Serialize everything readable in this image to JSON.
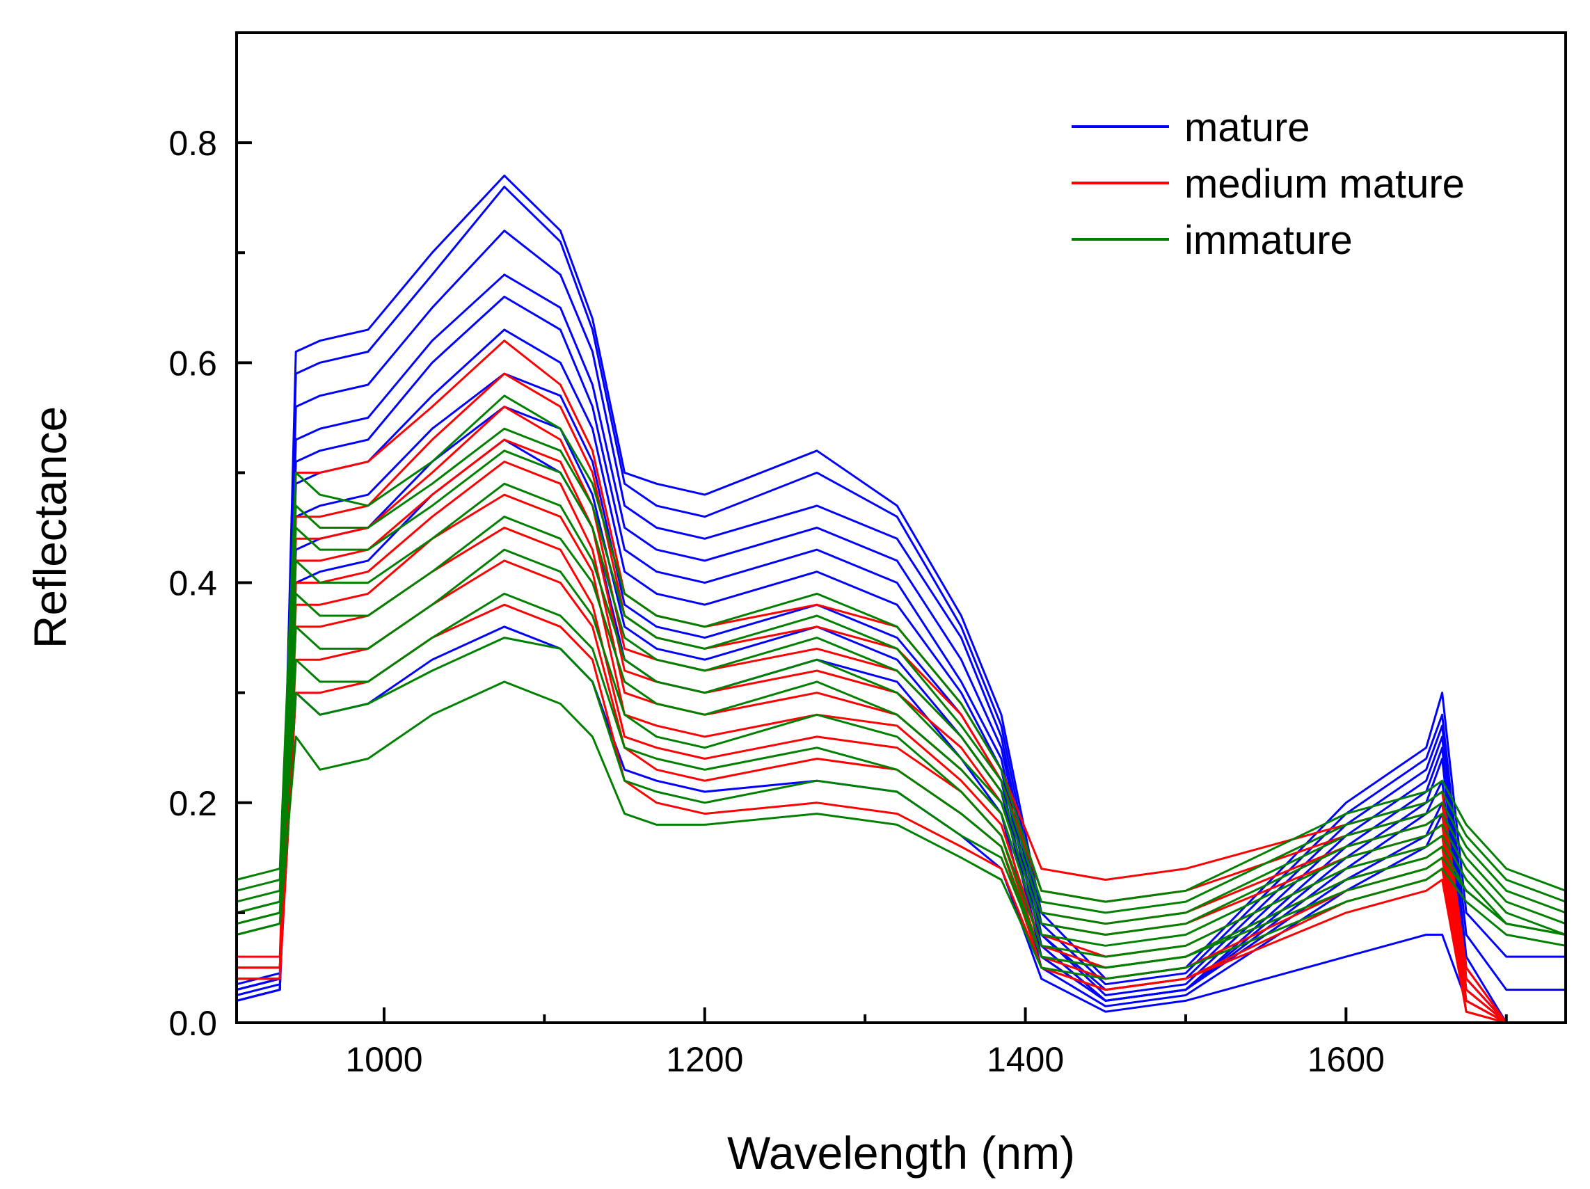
{
  "chart_data": {
    "type": "line",
    "title": "",
    "xlabel": "Wavelength (nm)",
    "ylabel": "Reflectance",
    "xlim": [
      908,
      1737
    ],
    "ylim": [
      0.0,
      0.9
    ],
    "xticks": [
      1000,
      1200,
      1400,
      1600
    ],
    "xtick_labels": [
      "1000",
      "1200",
      "1400",
      "1600"
    ],
    "yticks": [
      0.0,
      0.2,
      0.4,
      0.6,
      0.8
    ],
    "ytick_labels": [
      "0.0",
      "0.2",
      "0.4",
      "0.6",
      "0.8"
    ],
    "grid": false,
    "legend_position": "top-right",
    "legend": [
      {
        "label": "mature",
        "color": "#0000ff"
      },
      {
        "label": "medium mature",
        "color": "#ff0000"
      },
      {
        "label": "immature",
        "color": "#008000"
      }
    ],
    "x": [
      908,
      935,
      945,
      960,
      990,
      1030,
      1075,
      1110,
      1130,
      1150,
      1170,
      1200,
      1270,
      1320,
      1360,
      1385,
      1410,
      1450,
      1500,
      1600,
      1650,
      1660,
      1675,
      1700,
      1737
    ],
    "series_groups": [
      {
        "class": "mature",
        "color": "#0000ff",
        "series": [
          {
            "name": "mature-1",
            "values": [
              0.035,
              0.045,
              0.61,
              0.62,
              0.63,
              0.7,
              0.77,
              0.72,
              0.64,
              0.5,
              0.49,
              0.48,
              0.52,
              0.47,
              0.37,
              0.28,
              0.1,
              0.04,
              0.05,
              0.2,
              0.25,
              0.3,
              0.1,
              0.06,
              0.06
            ]
          },
          {
            "name": "mature-2",
            "values": [
              0.025,
              0.035,
              0.59,
              0.6,
              0.61,
              0.68,
              0.76,
              0.71,
              0.63,
              0.49,
              0.47,
              0.46,
              0.5,
              0.46,
              0.36,
              0.27,
              0.09,
              0.035,
              0.045,
              0.19,
              0.24,
              0.28,
              0.08,
              0.03,
              0.03
            ]
          },
          {
            "name": "mature-3",
            "values": [
              0.02,
              0.03,
              0.56,
              0.57,
              0.58,
              0.65,
              0.72,
              0.68,
              0.61,
              0.47,
              0.45,
              0.44,
              0.47,
              0.44,
              0.35,
              0.26,
              0.08,
              0.03,
              0.04,
              0.18,
              0.23,
              0.27,
              0.06,
              0.0,
              0.0
            ]
          },
          {
            "name": "mature-4",
            "values": [
              0.03,
              0.04,
              0.53,
              0.54,
              0.55,
              0.62,
              0.68,
              0.65,
              0.58,
              0.45,
              0.43,
              0.42,
              0.45,
              0.42,
              0.33,
              0.25,
              0.08,
              0.025,
              0.035,
              0.17,
              0.22,
              0.26,
              0.05,
              0.0,
              0.0
            ]
          },
          {
            "name": "mature-5",
            "values": [
              0.02,
              0.03,
              0.51,
              0.52,
              0.53,
              0.6,
              0.66,
              0.63,
              0.56,
              0.43,
              0.41,
              0.4,
              0.43,
              0.4,
              0.31,
              0.24,
              0.07,
              0.02,
              0.03,
              0.16,
              0.21,
              0.25,
              0.04,
              0.0,
              0.0
            ]
          },
          {
            "name": "mature-6",
            "values": [
              0.03,
              0.04,
              0.49,
              0.5,
              0.51,
              0.57,
              0.63,
              0.6,
              0.54,
              0.41,
              0.39,
              0.38,
              0.41,
              0.38,
              0.3,
              0.23,
              0.07,
              0.02,
              0.03,
              0.15,
              0.2,
              0.24,
              0.04,
              0.0,
              0.0
            ]
          },
          {
            "name": "mature-7",
            "values": [
              0.02,
              0.03,
              0.46,
              0.47,
              0.48,
              0.54,
              0.59,
              0.57,
              0.51,
              0.38,
              0.36,
              0.35,
              0.38,
              0.35,
              0.28,
              0.22,
              0.06,
              0.02,
              0.03,
              0.14,
              0.19,
              0.22,
              0.03,
              0.0,
              0.0
            ]
          },
          {
            "name": "mature-8",
            "values": [
              0.03,
              0.04,
              0.43,
              0.44,
              0.45,
              0.51,
              0.56,
              0.54,
              0.48,
              0.36,
              0.34,
              0.33,
              0.36,
              0.33,
              0.26,
              0.21,
              0.06,
              0.02,
              0.03,
              0.13,
              0.17,
              0.2,
              0.03,
              0.0,
              0.0
            ]
          },
          {
            "name": "mature-9",
            "values": [
              0.02,
              0.03,
              0.4,
              0.41,
              0.42,
              0.48,
              0.53,
              0.5,
              0.45,
              0.33,
              0.31,
              0.3,
              0.33,
              0.31,
              0.24,
              0.19,
              0.05,
              0.015,
              0.025,
              0.12,
              0.16,
              0.19,
              0.02,
              0.0,
              0.0
            ]
          },
          {
            "name": "mature-10",
            "values": [
              0.03,
              0.04,
              0.3,
              0.28,
              0.29,
              0.33,
              0.36,
              0.34,
              0.31,
              0.23,
              0.22,
              0.21,
              0.22,
              0.21,
              0.17,
              0.14,
              0.04,
              0.01,
              0.02,
              0.06,
              0.08,
              0.08,
              0.02,
              0.0,
              0.0
            ]
          }
        ]
      },
      {
        "class": "medium mature",
        "color": "#ff0000",
        "series": [
          {
            "name": "medium-1",
            "values": [
              0.06,
              0.06,
              0.5,
              0.5,
              0.51,
              0.56,
              0.62,
              0.58,
              0.52,
              0.39,
              0.37,
              0.36,
              0.38,
              0.36,
              0.29,
              0.23,
              0.14,
              0.13,
              0.14,
              0.18,
              0.2,
              0.21,
              0.05,
              0.0,
              0.0
            ]
          },
          {
            "name": "medium-2",
            "values": [
              0.05,
              0.05,
              0.46,
              0.46,
              0.47,
              0.53,
              0.59,
              0.56,
              0.5,
              0.37,
              0.35,
              0.34,
              0.36,
              0.34,
              0.28,
              0.22,
              0.12,
              0.11,
              0.12,
              0.17,
              0.19,
              0.2,
              0.04,
              0.0,
              0.0
            ]
          },
          {
            "name": "medium-3",
            "values": [
              0.05,
              0.05,
              0.44,
              0.44,
              0.45,
              0.5,
              0.56,
              0.53,
              0.47,
              0.34,
              0.33,
              0.32,
              0.34,
              0.32,
              0.26,
              0.21,
              0.1,
              0.09,
              0.1,
              0.16,
              0.18,
              0.19,
              0.03,
              0.0,
              0.0
            ]
          },
          {
            "name": "medium-4",
            "values": [
              0.04,
              0.04,
              0.42,
              0.42,
              0.43,
              0.48,
              0.53,
              0.51,
              0.45,
              0.32,
              0.31,
              0.3,
              0.32,
              0.3,
              0.25,
              0.2,
              0.09,
              0.08,
              0.09,
              0.15,
              0.17,
              0.18,
              0.03,
              0.0,
              0.0
            ]
          },
          {
            "name": "medium-5",
            "values": [
              0.05,
              0.05,
              0.4,
              0.4,
              0.41,
              0.46,
              0.51,
              0.49,
              0.43,
              0.3,
              0.29,
              0.28,
              0.3,
              0.28,
              0.23,
              0.19,
              0.08,
              0.06,
              0.07,
              0.14,
              0.16,
              0.17,
              0.02,
              0.0,
              0.0
            ]
          },
          {
            "name": "medium-6",
            "values": [
              0.04,
              0.04,
              0.38,
              0.38,
              0.39,
              0.44,
              0.48,
              0.46,
              0.41,
              0.28,
              0.27,
              0.26,
              0.28,
              0.27,
              0.22,
              0.18,
              0.07,
              0.05,
              0.06,
              0.13,
              0.15,
              0.16,
              0.02,
              0.0,
              0.0
            ]
          },
          {
            "name": "medium-7",
            "values": [
              0.05,
              0.05,
              0.36,
              0.36,
              0.37,
              0.41,
              0.45,
              0.43,
              0.38,
              0.26,
              0.25,
              0.24,
              0.26,
              0.25,
              0.21,
              0.17,
              0.06,
              0.04,
              0.05,
              0.12,
              0.14,
              0.15,
              0.01,
              0.0,
              0.0
            ]
          },
          {
            "name": "medium-8",
            "values": [
              0.05,
              0.05,
              0.33,
              0.33,
              0.34,
              0.38,
              0.42,
              0.4,
              0.36,
              0.25,
              0.23,
              0.22,
              0.24,
              0.23,
              0.19,
              0.16,
              0.05,
              0.03,
              0.04,
              0.11,
              0.13,
              0.14,
              0.01,
              0.0,
              0.0
            ]
          },
          {
            "name": "medium-9",
            "values": [
              0.04,
              0.04,
              0.3,
              0.3,
              0.31,
              0.35,
              0.38,
              0.36,
              0.33,
              0.22,
              0.2,
              0.19,
              0.2,
              0.19,
              0.16,
              0.14,
              0.05,
              0.03,
              0.04,
              0.1,
              0.12,
              0.13,
              0.01,
              0.0,
              0.0
            ]
          }
        ]
      },
      {
        "class": "immature",
        "color": "#008000",
        "series": [
          {
            "name": "immature-1",
            "values": [
              0.13,
              0.14,
              0.5,
              0.48,
              0.47,
              0.51,
              0.57,
              0.54,
              0.49,
              0.39,
              0.37,
              0.36,
              0.39,
              0.36,
              0.29,
              0.23,
              0.12,
              0.11,
              0.12,
              0.19,
              0.21,
              0.22,
              0.18,
              0.14,
              0.12
            ]
          },
          {
            "name": "immature-2",
            "values": [
              0.12,
              0.13,
              0.47,
              0.45,
              0.45,
              0.49,
              0.54,
              0.52,
              0.47,
              0.37,
              0.35,
              0.34,
              0.37,
              0.34,
              0.27,
              0.22,
              0.11,
              0.1,
              0.11,
              0.18,
              0.2,
              0.21,
              0.17,
              0.13,
              0.11
            ]
          },
          {
            "name": "immature-3",
            "values": [
              0.11,
              0.12,
              0.45,
              0.43,
              0.43,
              0.47,
              0.52,
              0.5,
              0.45,
              0.35,
              0.33,
              0.32,
              0.35,
              0.32,
              0.26,
              0.21,
              0.1,
              0.09,
              0.1,
              0.17,
              0.19,
              0.2,
              0.16,
              0.12,
              0.1
            ]
          },
          {
            "name": "immature-4",
            "values": [
              0.1,
              0.11,
              0.42,
              0.4,
              0.4,
              0.44,
              0.49,
              0.47,
              0.42,
              0.33,
              0.31,
              0.3,
              0.33,
              0.3,
              0.24,
              0.2,
              0.09,
              0.08,
              0.09,
              0.16,
              0.18,
              0.19,
              0.15,
              0.11,
              0.09
            ]
          },
          {
            "name": "immature-5",
            "values": [
              0.09,
              0.1,
              0.39,
              0.37,
              0.37,
              0.41,
              0.46,
              0.44,
              0.4,
              0.31,
              0.29,
              0.28,
              0.31,
              0.28,
              0.23,
              0.19,
              0.08,
              0.07,
              0.08,
              0.15,
              0.17,
              0.18,
              0.14,
              0.1,
              0.08
            ]
          },
          {
            "name": "immature-6",
            "values": [
              0.08,
              0.09,
              0.36,
              0.34,
              0.34,
              0.38,
              0.43,
              0.41,
              0.37,
              0.28,
              0.26,
              0.25,
              0.28,
              0.26,
              0.21,
              0.17,
              0.07,
              0.06,
              0.07,
              0.14,
              0.16,
              0.17,
              0.13,
              0.09,
              0.08
            ]
          },
          {
            "name": "immature-7",
            "values": [
              0.09,
              0.1,
              0.33,
              0.31,
              0.31,
              0.35,
              0.39,
              0.37,
              0.34,
              0.25,
              0.24,
              0.23,
              0.25,
              0.23,
              0.19,
              0.16,
              0.06,
              0.05,
              0.06,
              0.13,
              0.15,
              0.16,
              0.12,
              0.09,
              0.08
            ]
          },
          {
            "name": "immature-8",
            "values": [
              0.1,
              0.11,
              0.3,
              0.28,
              0.29,
              0.32,
              0.35,
              0.34,
              0.31,
              0.22,
              0.21,
              0.2,
              0.22,
              0.21,
              0.17,
              0.15,
              0.06,
              0.05,
              0.06,
              0.12,
              0.14,
              0.15,
              0.12,
              0.09,
              0.08
            ]
          },
          {
            "name": "immature-9",
            "values": [
              0.08,
              0.09,
              0.26,
              0.23,
              0.24,
              0.28,
              0.31,
              0.29,
              0.26,
              0.19,
              0.18,
              0.18,
              0.19,
              0.18,
              0.15,
              0.13,
              0.05,
              0.04,
              0.05,
              0.11,
              0.13,
              0.14,
              0.11,
              0.08,
              0.07
            ]
          }
        ]
      }
    ]
  }
}
